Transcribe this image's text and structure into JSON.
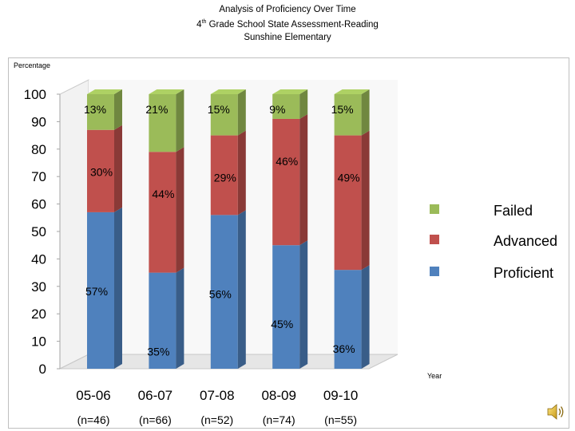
{
  "chart_data": {
    "type": "bar",
    "stacked": true,
    "title": "Analysis of Proficiency Over Time",
    "subtitle_pre": "4",
    "subtitle_sup": "th",
    "subtitle_post": " Grade School State Assessment-Reading",
    "subtitle2": "Sunshine Elementary",
    "ylabel": "Percentage",
    "xlabel": "Year",
    "ylim": [
      0,
      100
    ],
    "yticks": [
      "0",
      "10",
      "20",
      "30",
      "40",
      "50",
      "60",
      "70",
      "80",
      "90",
      "100"
    ],
    "categories": [
      "05-06",
      "06-07",
      "07-08",
      "08-09",
      "09-10"
    ],
    "sample_sizes": [
      "(n=46)",
      "(n=66)",
      "(n=52)",
      "(n=74)",
      "(n=55)"
    ],
    "series": [
      {
        "name": "Proficient",
        "color": "#4f81bd",
        "values": [
          57,
          35,
          56,
          45,
          36
        ],
        "labels": [
          "57%",
          "35%",
          "56%",
          "45%",
          "36%"
        ]
      },
      {
        "name": "Advanced",
        "color": "#c0504d",
        "values": [
          30,
          44,
          29,
          46,
          49
        ],
        "labels": [
          "30%",
          "44%",
          "29%",
          "46%",
          "49%"
        ]
      },
      {
        "name": "Failed",
        "color": "#9bbb59",
        "values": [
          13,
          21,
          15,
          9,
          15
        ],
        "labels": [
          "13%",
          "21%",
          "15%",
          "9%",
          "15%"
        ]
      }
    ],
    "legend_order": [
      "Failed",
      "Advanced",
      "Proficient"
    ],
    "legend_position": "right",
    "grid": false
  },
  "icons": {
    "speaker": "speaker-icon"
  }
}
